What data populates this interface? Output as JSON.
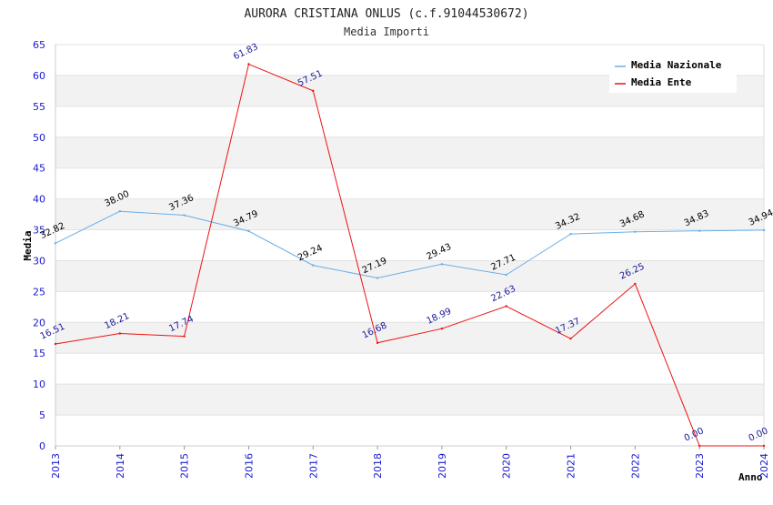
{
  "chart_data": {
    "type": "line",
    "title": "AURORA CRISTIANA ONLUS (c.f.91044530672)",
    "subtitle": "Media Importi",
    "xlabel": "Anno",
    "ylabel": "Media",
    "ylim": [
      0,
      65
    ],
    "yticks": [
      "0",
      "5",
      "10",
      "15",
      "20",
      "25",
      "30",
      "35",
      "40",
      "45",
      "50",
      "55",
      "60",
      "65"
    ],
    "categories": [
      "2013",
      "2014",
      "2015",
      "2016",
      "2017",
      "2018",
      "2019",
      "2020",
      "2021",
      "2022",
      "2023",
      "2024"
    ],
    "grid": true,
    "legend_position": "top-right",
    "series": [
      {
        "name": "Media Nazionale",
        "color": "#6aaee8",
        "label_color": "#000000",
        "values": [
          32.82,
          38.0,
          37.36,
          34.79,
          29.24,
          27.19,
          29.43,
          27.71,
          34.32,
          34.68,
          34.83,
          34.94
        ],
        "labels": [
          "32.82",
          "38.00",
          "37.36",
          "34.79",
          "29.24",
          "27.19",
          "29.43",
          "27.71",
          "34.32",
          "34.68",
          "34.83",
          "34.94"
        ]
      },
      {
        "name": "Media Ente",
        "color": "#ee1111",
        "label_color": "#1a1a99",
        "values": [
          16.51,
          18.21,
          17.74,
          61.83,
          57.51,
          16.68,
          18.99,
          22.63,
          17.37,
          26.25,
          0.0,
          0.0
        ],
        "labels": [
          "16.51",
          "18.21",
          "17.74",
          "61.83",
          "57.51",
          "16.68",
          "18.99",
          "22.63",
          "17.37",
          "26.25",
          "0.00",
          "0.00"
        ]
      }
    ]
  }
}
